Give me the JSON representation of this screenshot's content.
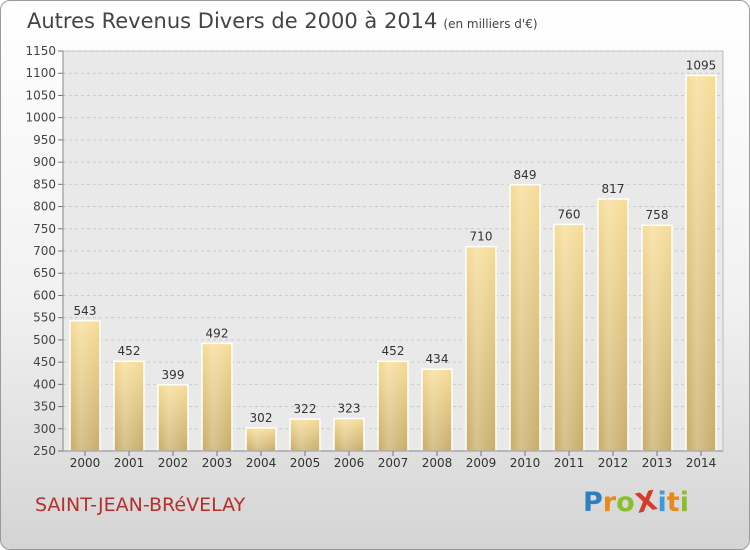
{
  "title": "Autres Revenus Divers de 2000 à 2014",
  "unit_label": "(en milliers d'€)",
  "commune": "SAINT-JEAN-BRéVELAY",
  "logo": {
    "text": "ProXiti",
    "letters": [
      "P",
      "r",
      "o",
      "X",
      "i",
      "t",
      "i"
    ],
    "colors": [
      "#2e7fc2",
      "#e8891c",
      "#8bbf2a",
      "#d63a2a",
      "#3b9ad9",
      "#e8891c",
      "#8bbf2a"
    ]
  },
  "chart_data": {
    "type": "bar",
    "title": "Autres Revenus Divers de 2000 à 2014",
    "xlabel": "",
    "ylabel": "",
    "categories": [
      "2000",
      "2001",
      "2002",
      "2003",
      "2004",
      "2005",
      "2006",
      "2007",
      "2008",
      "2009",
      "2010",
      "2011",
      "2012",
      "2013",
      "2014"
    ],
    "values": [
      543,
      452,
      399,
      492,
      302,
      322,
      323,
      452,
      434,
      710,
      849,
      760,
      817,
      758,
      1095
    ],
    "data_labels": [
      "543",
      "452",
      "399",
      "492",
      "302",
      "322",
      "323",
      "452",
      "434",
      "710",
      "849",
      "760",
      "817",
      "758",
      "1095"
    ],
    "ylim": [
      250,
      1150
    ],
    "yticks": [
      "250",
      "300",
      "350",
      "400",
      "450",
      "500",
      "550",
      "600",
      "650",
      "700",
      "750",
      "800",
      "850",
      "900",
      "950",
      "1000",
      "1050",
      "1100",
      "1150"
    ],
    "grid": true,
    "bar_color": "#e8cf86"
  }
}
